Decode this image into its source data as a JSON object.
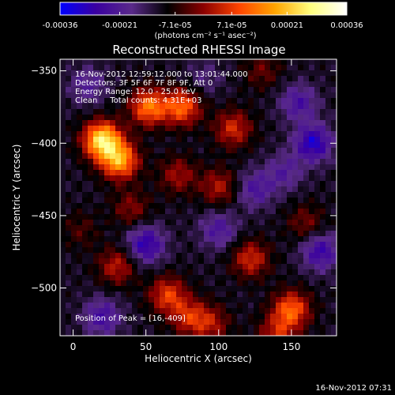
{
  "chart_data": {
    "type": "heatmap",
    "title": "Reconstructed RHESSI Image",
    "xlabel": "Heliocentric X (arcsec)",
    "ylabel": "Heliocentric Y (arcsec)",
    "xlim": [
      -9,
      181
    ],
    "ylim": [
      -533,
      -342
    ],
    "x_ticks": [
      0,
      50,
      100,
      150
    ],
    "y_ticks": [
      -350,
      -400,
      -450,
      -500
    ],
    "colorbar": {
      "range": [
        -0.00036,
        0.00036
      ],
      "tick_labels": [
        "-0.00036",
        "-0.00021",
        "-7.1e-05",
        "7.1e-05",
        "0.00021",
        "0.00036"
      ],
      "tick_values": [
        -0.00036,
        -0.00021,
        -7.1e-05,
        7.1e-05,
        0.00021,
        0.00036
      ],
      "label": "(photons cm⁻² s⁻¹ asec⁻²)",
      "colors": [
        "#0000ff",
        "#3a00a0",
        "#5a2a8a",
        "#000000",
        "#8b0000",
        "#ff4500",
        "#ffa500",
        "#ffff80",
        "#ffffff"
      ]
    },
    "annotations": [
      "16-Nov-2012 12:59:12.000 to 13:01:44.000",
      "Detectors: 3F 5F 6F 7F 8F 9F, Att 0",
      "Energy Range: 12.0 - 25.0 keV",
      "Clean     Total counts: 4.31E+03"
    ],
    "peak_label": "Position of Peak = [16,-409]",
    "peak": [
      16,
      -409
    ],
    "sources": [
      {
        "x": 20,
        "y": -398,
        "value": 0.00036
      },
      {
        "x": 32,
        "y": -412,
        "value": 0.00028
      },
      {
        "x": 52,
        "y": -375,
        "value": 0.00024
      },
      {
        "x": 75,
        "y": -375,
        "value": 0.00022
      },
      {
        "x": 110,
        "y": -390,
        "value": 0.00016
      },
      {
        "x": 72,
        "y": -422,
        "value": 0.00012
      },
      {
        "x": 100,
        "y": -430,
        "value": 0.00013
      },
      {
        "x": 40,
        "y": -445,
        "value": 0.0001
      },
      {
        "x": 30,
        "y": -485,
        "value": 0.00014
      },
      {
        "x": 65,
        "y": -505,
        "value": 0.00018
      },
      {
        "x": 80,
        "y": -520,
        "value": 0.00015
      },
      {
        "x": 95,
        "y": -525,
        "value": 0.00012
      },
      {
        "x": 122,
        "y": -480,
        "value": 0.00016
      },
      {
        "x": 150,
        "y": -515,
        "value": 0.00022
      },
      {
        "x": 140,
        "y": -532,
        "value": 0.00014
      },
      {
        "x": 160,
        "y": -455,
        "value": 9e-05
      },
      {
        "x": 130,
        "y": -350,
        "value": 8e-05
      },
      {
        "x": 5,
        "y": -460,
        "value": 6e-05
      },
      {
        "x": 125,
        "y": -432,
        "value": -0.00012
      },
      {
        "x": 10,
        "y": -360,
        "value": -0.0001
      },
      {
        "x": 50,
        "y": -470,
        "value": -0.00018
      },
      {
        "x": 20,
        "y": -520,
        "value": -0.00014
      },
      {
        "x": 165,
        "y": -400,
        "value": -0.0002
      },
      {
        "x": 170,
        "y": -475,
        "value": -0.00016
      },
      {
        "x": 100,
        "y": -460,
        "value": -0.00012
      },
      {
        "x": 145,
        "y": -420,
        "value": -0.0001
      },
      {
        "x": 155,
        "y": -372,
        "value": -0.00013
      },
      {
        "x": 90,
        "y": -355,
        "value": -6e-05
      }
    ]
  },
  "footer_timestamp": "16-Nov-2012 07:31"
}
